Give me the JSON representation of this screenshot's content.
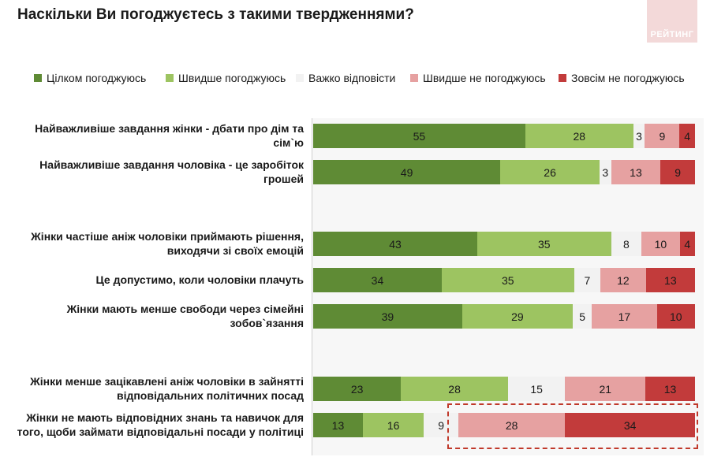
{
  "title": "Наскільки Ви погоджуєтесь з такими твердженнями?",
  "logo": {
    "text": "РЕЙТИНГ"
  },
  "colors": {
    "strong_agree": "#5f8b35",
    "agree": "#9dc461",
    "hard": "#f2f2f2",
    "disagree": "#e6a1a1",
    "strong_disagree": "#c23b3b",
    "highlight_border": "#c0392b"
  },
  "chart_data": {
    "type": "bar",
    "orientation": "horizontal",
    "stacked": true,
    "legend_position": "top",
    "xlim": [
      0,
      100
    ],
    "categories": [
      "Найважливіше завдання жінки - дбати про дім та сім`ю",
      "Найважливіше завдання чоловіка - це заробіток грошей",
      "Жінки частіше аніж чоловіки приймають рішення, виходячи зі своїх емоцій",
      "Це допустимо, коли чоловіки плачуть",
      "Жінки мають менше свободи через сімейні зобов`язання",
      "Жінки менше зацікавлені аніж чоловіки в зайнятті відповідальних політичних посад",
      "Жінки не мають відповідних знань та навичок для того, щоби займати відповідальні посади у політиці"
    ],
    "series": [
      {
        "name": "Цілком погоджуюсь",
        "values": [
          55,
          49,
          43,
          34,
          39,
          23,
          13
        ]
      },
      {
        "name": "Швидше погоджуюсь",
        "values": [
          28,
          26,
          35,
          35,
          29,
          28,
          16
        ]
      },
      {
        "name": "Важко відповісти",
        "values": [
          3,
          3,
          8,
          7,
          5,
          15,
          9
        ]
      },
      {
        "name": "Швидше не погоджуюсь",
        "values": [
          9,
          13,
          10,
          12,
          17,
          21,
          28
        ]
      },
      {
        "name": "Зовсім не погоджуюсь",
        "values": [
          4,
          9,
          4,
          13,
          10,
          13,
          34
        ]
      }
    ]
  }
}
